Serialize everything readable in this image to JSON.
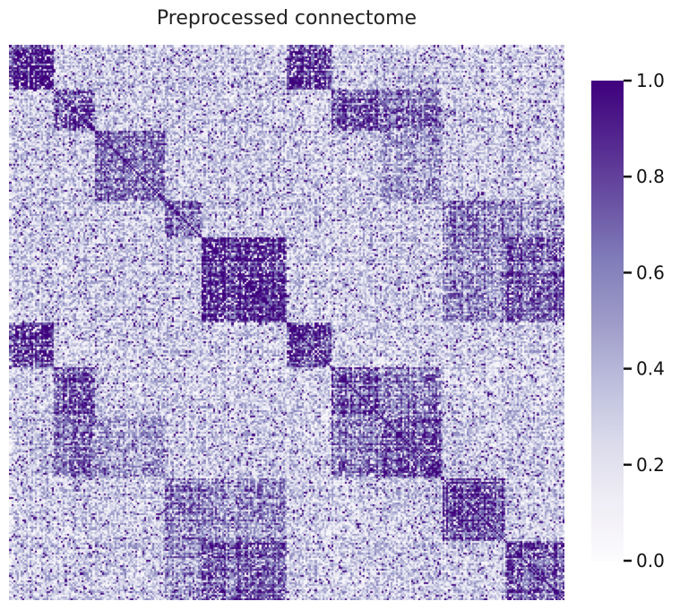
{
  "chart_data": {
    "type": "heatmap",
    "title": "Preprocessed connectome",
    "xlabel": "",
    "ylabel": "",
    "matrix_size": 300,
    "value_range": [
      0.0,
      1.0
    ],
    "colormap": "Purples",
    "colormap_stops": [
      "#fcfbfd",
      "#efedf5",
      "#dadaeb",
      "#bcbddc",
      "#9e9ac8",
      "#807dba",
      "#6a51a3",
      "#54278f",
      "#3f007d"
    ],
    "diagonal_value": 1.0,
    "module_boundaries": [
      0,
      24,
      46,
      84,
      104,
      150,
      174,
      200,
      234,
      268,
      300
    ],
    "module_sizes": [
      24,
      22,
      38,
      20,
      46,
      24,
      26,
      34,
      34,
      32
    ],
    "within_module_mean": [
      0.92,
      0.82,
      0.62,
      0.65,
      0.84,
      0.93,
      0.8,
      0.72,
      0.8,
      0.76
    ],
    "between_module_mean_default": 0.32,
    "between_module_strong_pairs": [
      {
        "modules": [
          0,
          5
        ],
        "mean": 0.9
      },
      {
        "modules": [
          1,
          6
        ],
        "mean": 0.8
      },
      {
        "modules": [
          1,
          7
        ],
        "mean": 0.65
      },
      {
        "modules": [
          3,
          8
        ],
        "mean": 0.62
      },
      {
        "modules": [
          4,
          9
        ],
        "mean": 0.72
      },
      {
        "modules": [
          4,
          8
        ],
        "mean": 0.55
      },
      {
        "modules": [
          3,
          9
        ],
        "mean": 0.5
      },
      {
        "modules": [
          6,
          7
        ],
        "mean": 0.62
      },
      {
        "modules": [
          2,
          7
        ],
        "mean": 0.45
      }
    ],
    "colorbar": {
      "ticks": [
        0.0,
        0.2,
        0.4,
        0.6,
        0.8,
        1.0
      ],
      "tick_labels": [
        "0.0",
        "0.2",
        "0.4",
        "0.6",
        "0.8",
        "1.0"
      ]
    }
  }
}
